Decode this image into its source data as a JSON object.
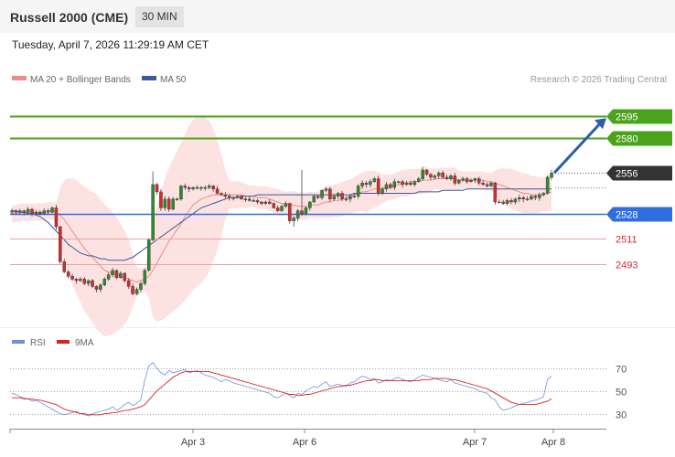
{
  "header": {
    "title": "Russell 2000 (CME)",
    "timeframe": "30 MIN",
    "datetime": "Tuesday, April 7, 2026 11:29:19 AM CET"
  },
  "colors": {
    "candle_up": "#2e8b2e",
    "candle_down": "#d42b2b",
    "bollinger_fill": "#fde2e2",
    "ma20": "#f08a8a",
    "ma50": "#3a5a9a",
    "resistance": "#4aa31a",
    "support_strong": "#2f6ee0",
    "support": "#f0a0a0",
    "current_price": "#333333",
    "arrow": "#2c5fa8",
    "rsi": "#6f8fe0",
    "rsi_ma": "#e02020"
  },
  "chart_data": [
    {
      "type": "candlestick",
      "title": "",
      "legend": [
        {
          "name": "MA 20 + Bollinger Bands",
          "color": "#f08a8a"
        },
        {
          "name": "MA 50",
          "color": "#3a5a9a"
        }
      ],
      "credit": "Research © 2026 Trading Central",
      "ylim": [
        2455,
        2612
      ],
      "levels": [
        {
          "label": "2595",
          "value": 2595,
          "kind": "resistance"
        },
        {
          "label": "2580",
          "value": 2580,
          "kind": "resistance"
        },
        {
          "label": "2556",
          "value": 2556,
          "kind": "current"
        },
        {
          "label": "2528",
          "value": 2528,
          "kind": "support_strong"
        },
        {
          "label": "2511",
          "value": 2511,
          "kind": "support"
        },
        {
          "label": "2493",
          "value": 2493,
          "kind": "support"
        }
      ],
      "close": [
        2530,
        2529,
        2530,
        2529,
        2531,
        2528,
        2529,
        2528,
        2530,
        2529,
        2532,
        2519,
        2495,
        2488,
        2485,
        2483,
        2482,
        2483,
        2480,
        2482,
        2478,
        2476,
        2479,
        2483,
        2486,
        2489,
        2484,
        2487,
        2482,
        2478,
        2473,
        2476,
        2480,
        2489,
        2510,
        2548,
        2543,
        2532,
        2538,
        2531,
        2538,
        2538,
        2547,
        2546,
        2545,
        2546,
        2546,
        2546,
        2546,
        2547,
        2545,
        2542,
        2541,
        2540,
        2539,
        2539,
        2540,
        2538,
        2538,
        2537,
        2537,
        2536,
        2535,
        2536,
        2535,
        2532,
        2530,
        2533,
        2535,
        2523,
        2525,
        2530,
        2528,
        2532,
        2536,
        2540,
        2539,
        2544,
        2545,
        2538,
        2540,
        2542,
        2538,
        2538,
        2540,
        2540,
        2547,
        2549,
        2548,
        2550,
        2552,
        2542,
        2545,
        2548,
        2546,
        2550,
        2550,
        2548,
        2549,
        2548,
        2550,
        2552,
        2558,
        2555,
        2553,
        2554,
        2556,
        2553,
        2552,
        2554,
        2549,
        2551,
        2552,
        2550,
        2551,
        2552,
        2549,
        2548,
        2547,
        2549,
        2536,
        2536,
        2535,
        2537,
        2536,
        2538,
        2539,
        2538,
        2538,
        2540,
        2539,
        2541,
        2542,
        2553,
        2556
      ],
      "ma20": [
        2528,
        2528,
        2529,
        2529,
        2529,
        2529,
        2529,
        2529,
        2529,
        2530,
        2530,
        2529,
        2527,
        2524,
        2520,
        2516,
        2512,
        2508,
        2504,
        2501,
        2498,
        2495,
        2492,
        2489,
        2488,
        2487,
        2486,
        2485,
        2484,
        2483,
        2482,
        2481,
        2482,
        2483,
        2485,
        2489,
        2494,
        2499,
        2504,
        2509,
        2513,
        2517,
        2521,
        2526,
        2530,
        2534,
        2536,
        2538,
        2539,
        2540,
        2541,
        2541,
        2541,
        2541,
        2541,
        2541,
        2541,
        2541,
        2540,
        2540,
        2540,
        2539,
        2539,
        2539,
        2538,
        2537,
        2536,
        2535,
        2535,
        2534,
        2534,
        2533,
        2533,
        2533,
        2534,
        2534,
        2534,
        2535,
        2536,
        2536,
        2537,
        2537,
        2538,
        2539,
        2540,
        2541,
        2542,
        2543,
        2543,
        2544,
        2545,
        2545,
        2545,
        2546,
        2546,
        2547,
        2548,
        2549,
        2549,
        2550,
        2550,
        2550,
        2551,
        2551,
        2551,
        2552,
        2552,
        2552,
        2552,
        2552,
        2552,
        2551,
        2551,
        2551,
        2551,
        2551,
        2551,
        2551,
        2550,
        2550,
        2549,
        2548,
        2547,
        2546,
        2545,
        2544,
        2543,
        2542,
        2542,
        2541,
        2541,
        2541,
        2541,
        2542,
        2543
      ],
      "ma50": [
        2530,
        2530,
        2529,
        2529,
        2528,
        2528,
        2527,
        2526,
        2524,
        2522,
        2519,
        2516,
        2513,
        2510,
        2507,
        2505,
        2503,
        2501,
        2500,
        2499,
        2499,
        2498,
        2497,
        2497,
        2496,
        2496,
        2496,
        2496,
        2496,
        2497,
        2498,
        2500,
        2502,
        2504,
        2506,
        2508,
        2510,
        2512,
        2514,
        2516,
        2518,
        2520,
        2522,
        2524,
        2526,
        2528,
        2530,
        2532,
        2533,
        2534,
        2535,
        2536,
        2537,
        2538,
        2539,
        2539,
        2539,
        2540,
        2540,
        2540,
        2540,
        2541,
        2541,
        2541,
        2541,
        2541,
        2541,
        2541,
        2541,
        2541,
        2541,
        2541,
        2541,
        2541,
        2541,
        2541,
        2541,
        2541,
        2541,
        2541,
        2541,
        2541,
        2541,
        2541,
        2541,
        2542,
        2542,
        2542,
        2542,
        2542,
        2542,
        2542,
        2542,
        2542,
        2542,
        2542,
        2542,
        2542,
        2542,
        2542,
        2542,
        2543,
        2543,
        2543,
        2543,
        2543,
        2543,
        2544,
        2544,
        2544,
        2544,
        2544,
        2544,
        2545,
        2545,
        2545,
        2545,
        2545,
        2545,
        2545,
        2545,
        2545,
        2545,
        2545,
        2545,
        2545,
        2545,
        2545,
        2545,
        2545,
        2545,
        2545,
        2545,
        2545,
        2545
      ]
    },
    {
      "type": "line",
      "title": "",
      "legend": [
        {
          "name": "RSI",
          "color": "#6f8fe0"
        },
        {
          "name": "9MA",
          "color": "#e02020"
        }
      ],
      "ylim": [
        20,
        82
      ],
      "ref_levels": [
        70,
        50,
        30
      ],
      "x_tick_labels": [
        "Apr 3",
        "Apr 6",
        "Apr 7",
        "Apr 8"
      ],
      "rsi": [
        48,
        47,
        45,
        44,
        43,
        41,
        42,
        40,
        38,
        36,
        34,
        32,
        30,
        29,
        30,
        31,
        32,
        30,
        29,
        28,
        30,
        31,
        32,
        33,
        34,
        36,
        33,
        35,
        38,
        40,
        37,
        39,
        42,
        60,
        72,
        75,
        70,
        66,
        64,
        68,
        66,
        67,
        68,
        69,
        66,
        67,
        68,
        66,
        64,
        63,
        62,
        60,
        58,
        60,
        59,
        57,
        56,
        55,
        54,
        53,
        52,
        51,
        50,
        49,
        48,
        45,
        44,
        46,
        48,
        46,
        44,
        48,
        47,
        50,
        52,
        54,
        53,
        56,
        58,
        54,
        55,
        56,
        55,
        54,
        57,
        58,
        61,
        63,
        62,
        60,
        61,
        57,
        58,
        60,
        59,
        61,
        62,
        60,
        59,
        58,
        60,
        62,
        64,
        63,
        62,
        61,
        60,
        59,
        58,
        60,
        57,
        56,
        55,
        54,
        53,
        52,
        50,
        49,
        48,
        44,
        42,
        36,
        33,
        34,
        35,
        37,
        38,
        39,
        40,
        41,
        42,
        43,
        45,
        60,
        63
      ],
      "rsi_ma": [
        44,
        44,
        44,
        43,
        43,
        43,
        42,
        42,
        41,
        40,
        39,
        38,
        36,
        34,
        33,
        32,
        31,
        30,
        30,
        29,
        29,
        29,
        29,
        30,
        30,
        31,
        31,
        32,
        33,
        33,
        34,
        35,
        36,
        38,
        42,
        46,
        50,
        53,
        56,
        59,
        62,
        64,
        66,
        67,
        67,
        67,
        67,
        67,
        67,
        67,
        66,
        65,
        64,
        63,
        62,
        61,
        60,
        59,
        58,
        57,
        56,
        55,
        54,
        53,
        52,
        51,
        50,
        49,
        48,
        47,
        47,
        46,
        46,
        47,
        47,
        48,
        49,
        50,
        51,
        52,
        53,
        54,
        54,
        55,
        55,
        56,
        57,
        58,
        59,
        59,
        60,
        60,
        59,
        59,
        59,
        59,
        59,
        59,
        59,
        59,
        59,
        59,
        60,
        60,
        60,
        61,
        61,
        61,
        61,
        60,
        60,
        59,
        58,
        57,
        56,
        55,
        54,
        53,
        52,
        50,
        48,
        46,
        44,
        42,
        40,
        39,
        38,
        38,
        38,
        38,
        38,
        39,
        40,
        41,
        43
      ]
    }
  ]
}
